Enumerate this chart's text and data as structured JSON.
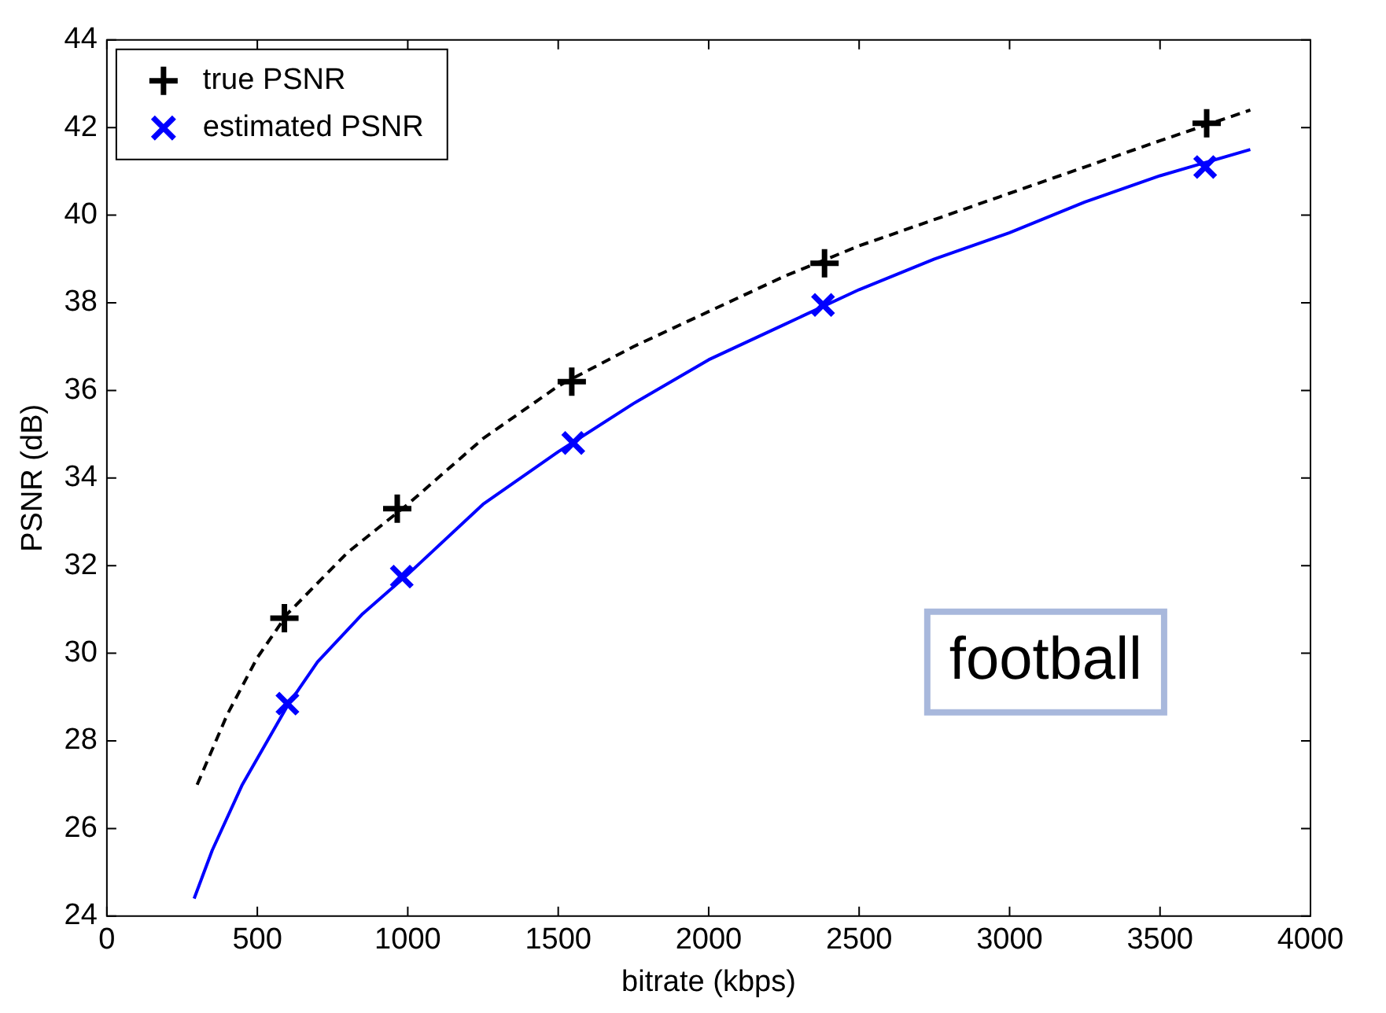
{
  "chart_data": {
    "type": "scatter",
    "xlabel": "bitrate (kbps)",
    "ylabel": "PSNR (dB)",
    "xlim": [
      0,
      4000
    ],
    "xticks": [
      0,
      500,
      1000,
      1500,
      2000,
      2500,
      3000,
      3500,
      4000
    ],
    "ylim": [
      24,
      44
    ],
    "yticks": [
      24,
      26,
      28,
      30,
      32,
      34,
      36,
      38,
      40,
      42,
      44
    ],
    "grid": false,
    "legend": "top left",
    "annotations": [
      "football"
    ],
    "series": [
      {
        "type": "line",
        "color": "#000000",
        "line_style": "dashed",
        "marker": "none",
        "x": [
          300,
          400,
          500,
          600,
          800,
          1000,
          1250,
          1500,
          1750,
          2000,
          2250,
          2500,
          2750,
          3000,
          3250,
          3500,
          3800
        ],
        "values": [
          27.0,
          28.6,
          29.9,
          30.9,
          32.3,
          33.4,
          34.9,
          36.1,
          37.0,
          37.8,
          38.6,
          39.3,
          39.9,
          40.5,
          41.1,
          41.7,
          42.4
        ]
      },
      {
        "type": "line",
        "color": "#0000ff",
        "line_style": "solid",
        "marker": "none",
        "x": [
          290,
          350,
          450,
          600,
          700,
          850,
          1000,
          1250,
          1500,
          1750,
          2000,
          2250,
          2500,
          2750,
          3000,
          3250,
          3500,
          3800
        ],
        "values": [
          24.4,
          25.5,
          27.0,
          28.8,
          29.8,
          30.9,
          31.8,
          33.4,
          34.6,
          35.7,
          36.7,
          37.5,
          38.3,
          39.0,
          39.6,
          40.3,
          40.9,
          41.5
        ]
      },
      {
        "name": "true PSNR",
        "color": "#000000",
        "marker": "cross",
        "x": [
          590,
          965,
          1545,
          2385,
          3655
        ],
        "values": [
          30.8,
          33.3,
          36.2,
          38.9,
          42.1
        ]
      },
      {
        "name": "estimated PSNR",
        "color": "#0000ff",
        "marker": "x",
        "x": [
          600,
          980,
          1550,
          2380,
          3650
        ],
        "values": [
          28.85,
          31.75,
          34.8,
          37.95,
          41.1
        ]
      }
    ]
  }
}
